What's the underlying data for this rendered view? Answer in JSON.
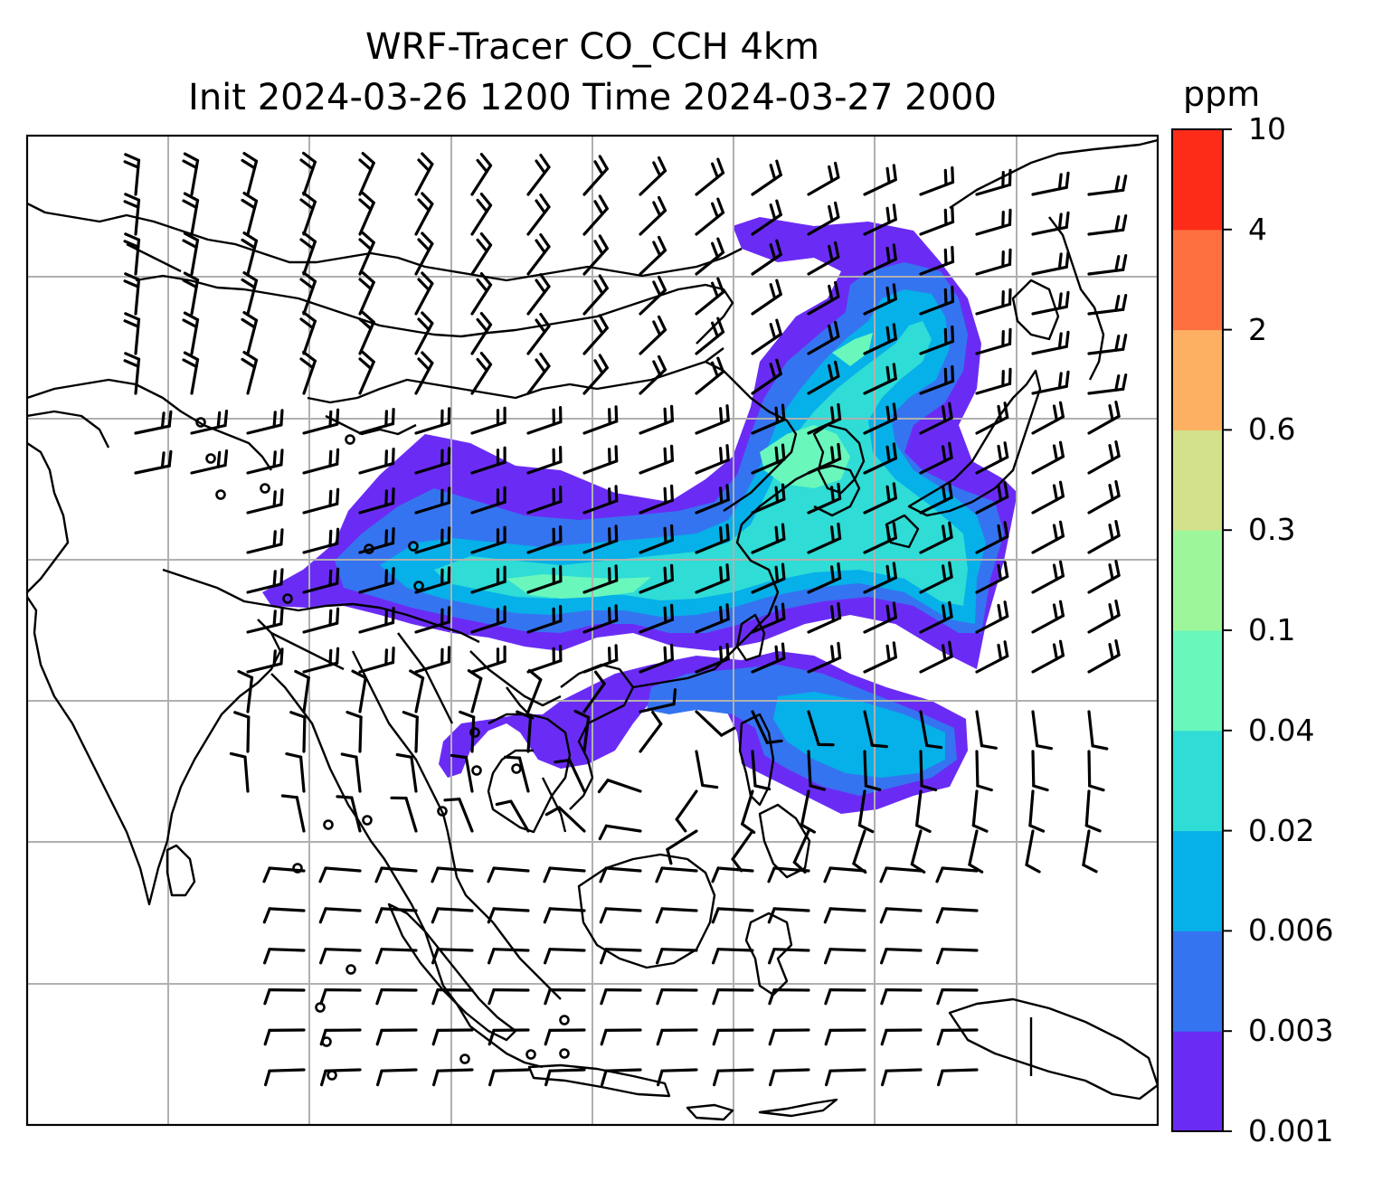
{
  "title": {
    "line1": "WRF-Tracer CO_CCH 4km",
    "line2": "Init 2024-03-26 1200 Time 2024-03-27 2000"
  },
  "colorbar": {
    "unit": "ppm",
    "levels": [
      "0.001",
      "0.003",
      "0.006",
      "0.02",
      "0.04",
      "0.1",
      "0.3",
      "0.6",
      "2",
      "4",
      "10"
    ],
    "colors": [
      "#6a2cf5",
      "#3574f0",
      "#06b0e8",
      "#2fdcd6",
      "#69f7bc",
      "#9df79a",
      "#d2e18a",
      "#fdb061",
      "#fe7040",
      "#fd2c18"
    ]
  },
  "map": {
    "ocean_color": "#ffffff",
    "coastline_color": "#000000",
    "gridline_color": "#b0b0b0",
    "grid": true,
    "wind_barbs": true,
    "plume_colors": {
      "outer": "#6a2cf5",
      "level2": "#3574f0",
      "level3": "#06b0e8",
      "level4": "#2fdcd6",
      "level5": "#69f7bc"
    }
  }
}
